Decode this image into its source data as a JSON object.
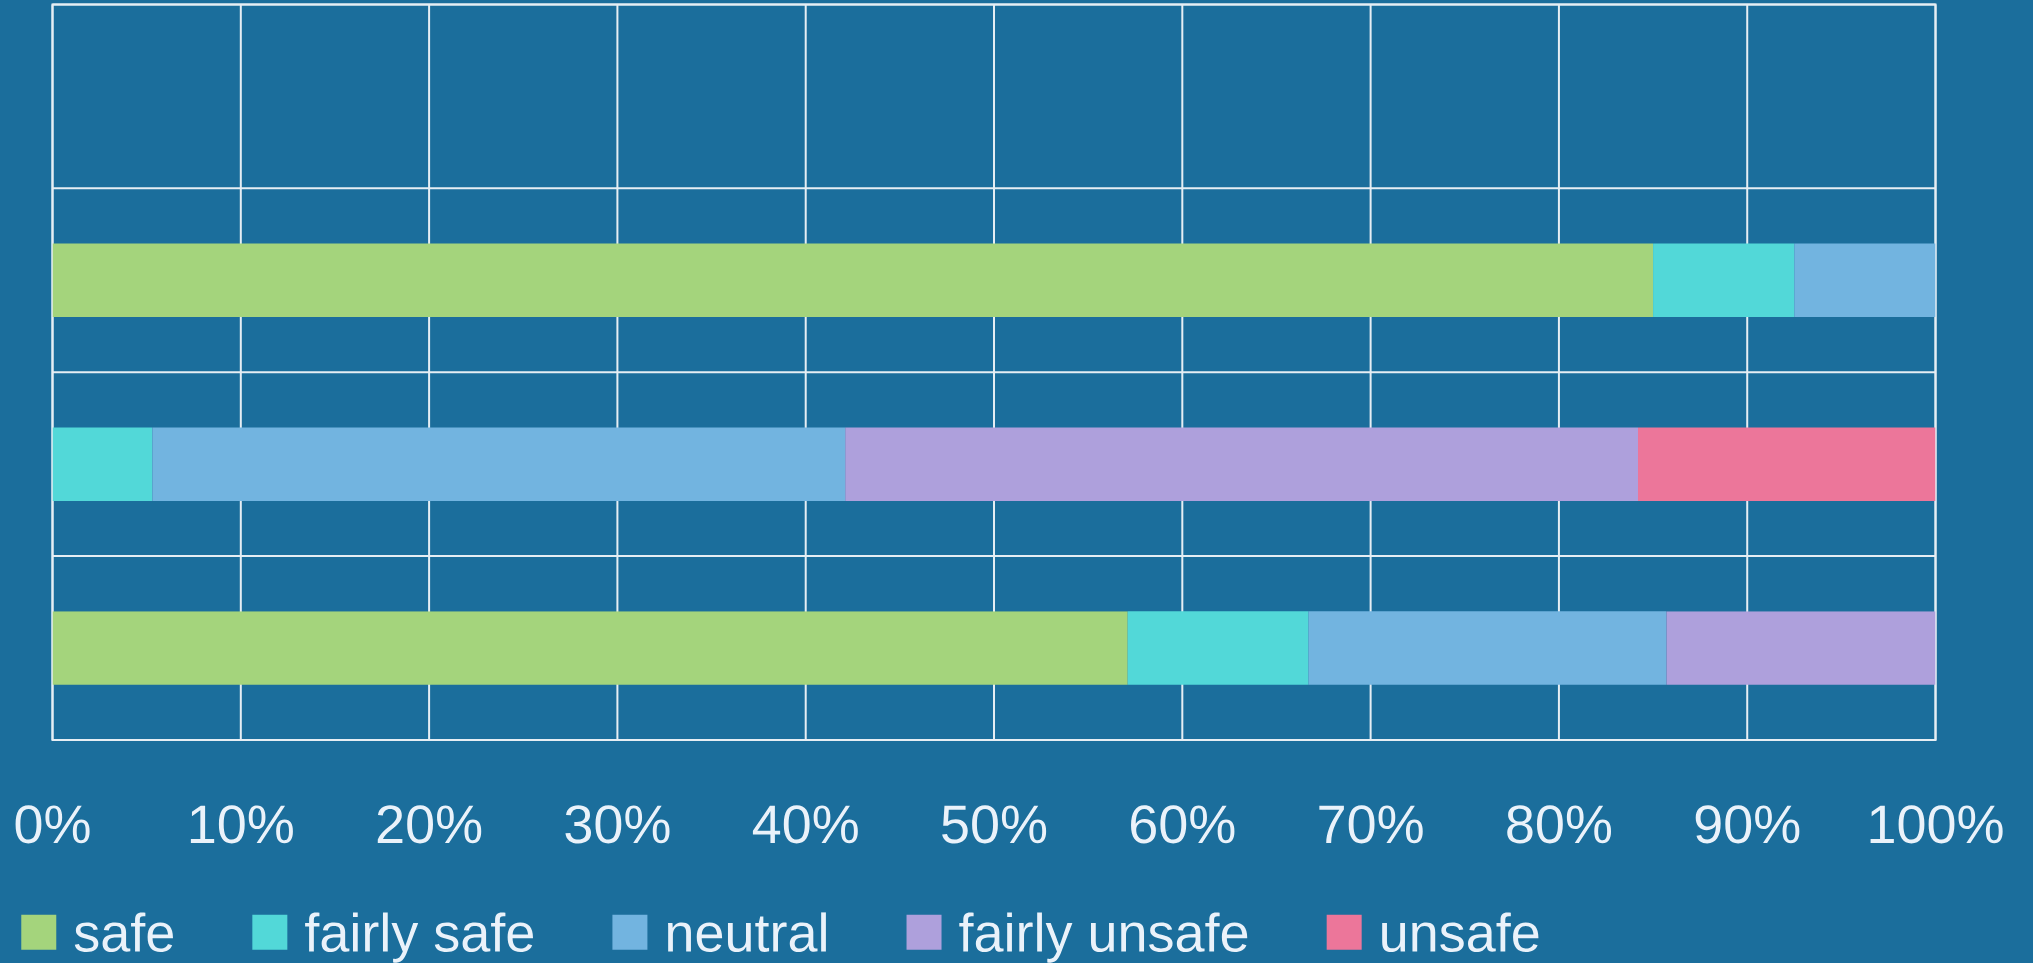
{
  "chart_data": {
    "type": "bar",
    "orientation": "horizontal",
    "stacked": true,
    "categories": [
      null,
      null,
      null,
      null
    ],
    "series": [
      {
        "name": "safe",
        "color": "#a4d47c",
        "values": [
          null,
          85,
          null,
          57.1
        ]
      },
      {
        "name": "fairly safe",
        "color": "#52d8d8",
        "values": [
          null,
          7.5,
          5.3,
          9.6
        ]
      },
      {
        "name": "neutral",
        "color": "#72b4e0",
        "values": [
          null,
          7.5,
          36.8,
          19.0
        ]
      },
      {
        "name": "fairly unsafe",
        "color": "#aea0dc",
        "values": [
          null,
          null,
          42.1,
          14.3
        ]
      },
      {
        "name": "unsafe",
        "color": "#ec769a",
        "values": [
          null,
          null,
          15.8,
          null
        ]
      }
    ],
    "xlim": [
      0,
      100
    ],
    "xticks": [
      {
        "value": 0,
        "label": "0%"
      },
      {
        "value": 10,
        "label": "10%"
      },
      {
        "value": 20,
        "label": "20%"
      },
      {
        "value": 30,
        "label": "30%"
      },
      {
        "value": 40,
        "label": "40%"
      },
      {
        "value": 50,
        "label": "50%"
      },
      {
        "value": 60,
        "label": "60%"
      },
      {
        "value": 70,
        "label": "70%"
      },
      {
        "value": 80,
        "label": "80%"
      },
      {
        "value": 90,
        "label": "90%"
      },
      {
        "value": 100,
        "label": "100%"
      }
    ],
    "grid": true,
    "legend": "bottom",
    "tick_labels": "x"
  }
}
